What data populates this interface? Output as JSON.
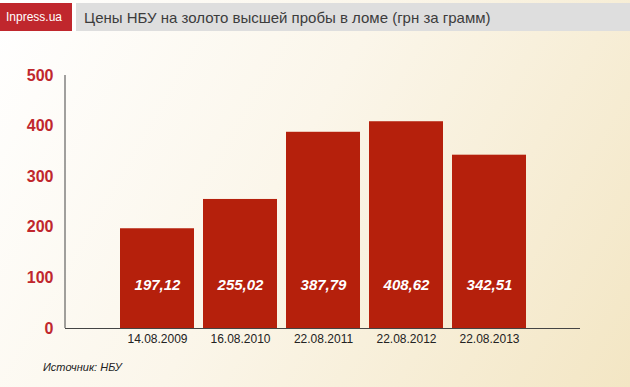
{
  "chart_data": {
    "type": "bar",
    "title": "Цены НБУ на золото высшей пробы в ломе (грн за грамм)",
    "logo": "Inpress.ua",
    "source": "Источник: НБУ",
    "categories": [
      "14.08.2009",
      "16.08.2010",
      "22.08.2011",
      "22.08.2012",
      "22.08.2013"
    ],
    "values": [
      197.12,
      255.02,
      387.79,
      408.62,
      342.51
    ],
    "value_labels": [
      "197,12",
      "255,02",
      "387,79",
      "408,62",
      "342,51"
    ],
    "color": "#b5200c",
    "ylim": [
      0,
      500
    ],
    "yticks": [
      0,
      100,
      200,
      300,
      400,
      500
    ],
    "grid": false,
    "data_labels": true
  }
}
